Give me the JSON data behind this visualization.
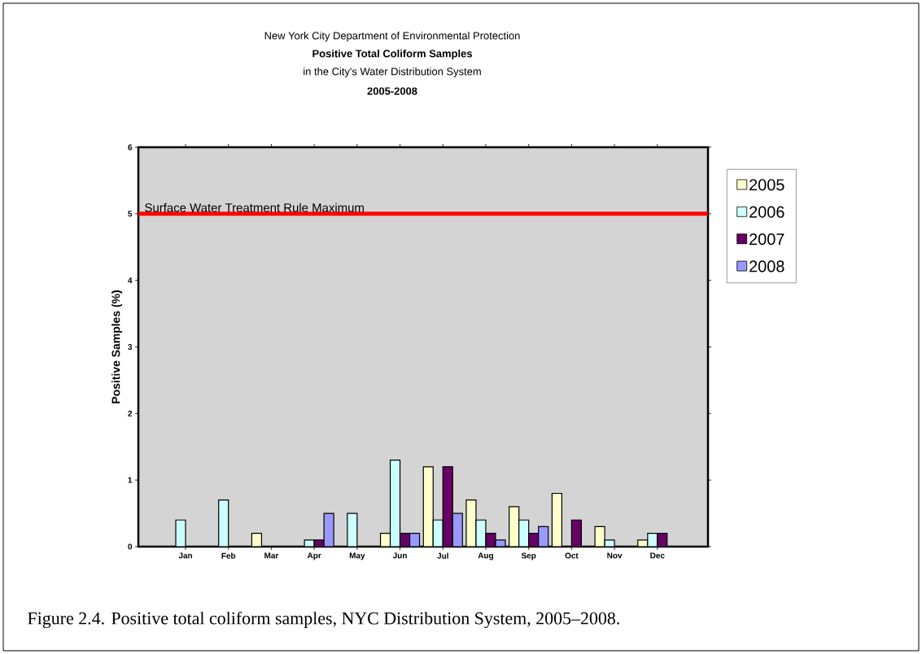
{
  "chart_data": {
    "type": "bar",
    "title": "Positive Total Coliform Samples",
    "subtitle": "in the City's Water Distribution System",
    "annotations": [
      "New York City Department of Environmental Protection",
      "2005-2008",
      "Figure 2.4.  Positive total coliform samples, NYC Distribution System, 2005–2008."
    ],
    "ylabel": "Positive Samples (%)",
    "categories": [
      "Jan",
      "Feb",
      "Mar",
      "Apr",
      "May",
      "Jun",
      "Jul",
      "Aug",
      "Sep",
      "Oct",
      "Nov",
      "Dec"
    ],
    "series": [
      {
        "name": "2005",
        "color": "#ffffcc",
        "values": [
          0,
          0,
          0.2,
          0,
          0,
          0.2,
          1.2,
          0.7,
          0.6,
          0.8,
          0.3,
          0.1
        ]
      },
      {
        "name": "2006",
        "color": "#ccffff",
        "values": [
          0.4,
          0.7,
          0,
          0.1,
          0.5,
          1.3,
          0.4,
          0.4,
          0.4,
          0,
          0.1,
          0.2
        ]
      },
      {
        "name": "2007",
        "color": "#660066",
        "values": [
          0,
          0,
          0,
          0.1,
          0,
          0.2,
          1.2,
          0.2,
          0.2,
          0.4,
          0,
          0.2
        ]
      },
      {
        "name": "2008",
        "color": "#9999ff",
        "values": [
          0,
          0,
          0,
          0.5,
          0,
          0.2,
          0.5,
          0.1,
          0.3,
          0,
          0,
          0
        ]
      }
    ],
    "ylim": [
      0,
      6
    ],
    "yticks": [
      0,
      1,
      2,
      3,
      4,
      5,
      6
    ],
    "ref_lines": [
      {
        "axis": "y",
        "value": 5,
        "label": "Surface Water Treatment Rule Maximum",
        "color": "#ff0000"
      }
    ],
    "legend": "right",
    "grid": false
  }
}
